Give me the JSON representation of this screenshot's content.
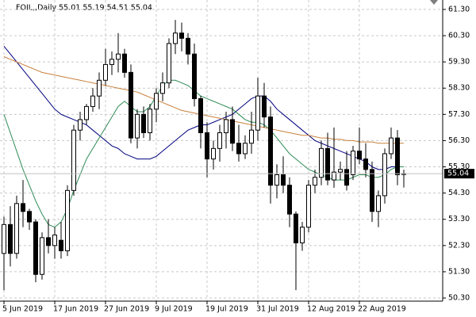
{
  "chart_data": {
    "type": "candlestick",
    "title": "FOIL,,Daily  55.01 55.19 54.51 55.04",
    "categories": [
      "5 Jun 2019",
      null,
      null,
      null,
      null,
      null,
      null,
      null,
      "17 Jun 2019",
      null,
      null,
      null,
      null,
      null,
      null,
      null,
      "27 Jun 2019",
      null,
      null,
      null,
      null,
      null,
      null,
      null,
      "9 Jul 2019",
      null,
      null,
      null,
      null,
      null,
      null,
      null,
      "19 Jul 2019",
      null,
      null,
      null,
      null,
      null,
      null,
      null,
      "31 Jul 2019",
      null,
      null,
      null,
      null,
      null,
      null,
      null,
      "12 Aug 2019",
      null,
      null,
      null,
      null,
      null,
      null,
      null,
      "22 Aug 2019",
      null,
      null,
      null,
      null,
      null,
      null,
      null
    ],
    "open": [
      52.0,
      53.1,
      52.0,
      53.9,
      53.6,
      53.2,
      51.2,
      52.6,
      52.3,
      52.5,
      52.1,
      54.4,
      56.7,
      57.1,
      57.6,
      58.0,
      58.6,
      59.2,
      59.4,
      59.6,
      58.9,
      56.4,
      57.3,
      56.6,
      57.5,
      58.1,
      58.5,
      60.0,
      60.4,
      60.2,
      59.6,
      57.9,
      56.6,
      55.6,
      56.0,
      56.6,
      57.1,
      56.2,
      55.8,
      56.2,
      56.7,
      58.0,
      57.2,
      54.6,
      55.0,
      54.6,
      53.5,
      52.4,
      53.0,
      54.6,
      54.9,
      56.0,
      54.8,
      55.1,
      55.2,
      55.0,
      55.9,
      55.6,
      55.2,
      53.6,
      54.2,
      55.8,
      56.4,
      55.01
    ],
    "high": [
      53.4,
      53.8,
      54.2,
      54.8,
      53.7,
      53.3,
      52.8,
      53.3,
      53.0,
      53.2,
      54.6,
      56.9,
      57.4,
      57.7,
      58.3,
      58.9,
      59.8,
      59.7,
      60.4,
      59.8,
      59.2,
      57.5,
      57.6,
      57.7,
      58.3,
      58.9,
      60.2,
      60.9,
      60.8,
      60.4,
      60.0,
      58.0,
      57.0,
      56.3,
      56.9,
      57.4,
      57.6,
      56.9,
      56.5,
      57.4,
      58.7,
      58.5,
      57.6,
      55.4,
      55.7,
      54.9,
      53.6,
      53.2,
      54.8,
      55.2,
      56.3,
      56.6,
      56.8,
      55.5,
      55.9,
      56.1,
      56.8,
      56.2,
      55.5,
      54.4,
      56.0,
      56.8,
      56.7,
      55.19
    ],
    "low": [
      50.6,
      51.5,
      51.8,
      53.0,
      52.9,
      50.9,
      51.0,
      52.0,
      51.8,
      51.8,
      51.9,
      54.2,
      56.3,
      56.9,
      57.4,
      57.5,
      58.4,
      58.8,
      58.9,
      58.7,
      56.2,
      56.0,
      56.4,
      56.3,
      57.0,
      57.8,
      58.3,
      59.6,
      59.7,
      59.2,
      57.6,
      56.0,
      54.9,
      55.2,
      55.5,
      56.0,
      55.9,
      55.5,
      55.6,
      55.8,
      56.3,
      56.8,
      53.9,
      54.1,
      54.3,
      53.0,
      50.6,
      52.1,
      52.8,
      54.3,
      54.6,
      54.6,
      54.5,
      54.8,
      54.4,
      54.8,
      55.4,
      54.9,
      53.2,
      53.0,
      53.9,
      55.6,
      54.6,
      54.51
    ],
    "close": [
      53.1,
      52.0,
      53.9,
      53.6,
      53.2,
      51.2,
      52.6,
      52.3,
      52.7,
      52.1,
      54.4,
      56.7,
      57.1,
      57.6,
      58.0,
      58.6,
      59.2,
      59.4,
      59.6,
      58.9,
      56.4,
      57.3,
      56.6,
      57.5,
      58.1,
      58.5,
      60.0,
      60.4,
      60.2,
      59.6,
      57.9,
      56.6,
      55.6,
      56.0,
      56.6,
      57.1,
      56.2,
      55.8,
      56.2,
      56.7,
      58.0,
      57.2,
      54.6,
      55.0,
      54.6,
      53.5,
      52.4,
      53.0,
      54.6,
      54.9,
      56.0,
      54.8,
      55.1,
      55.2,
      54.6,
      55.9,
      55.6,
      55.2,
      53.6,
      54.2,
      55.8,
      56.4,
      55.0,
      55.04
    ],
    "lines": [
      {
        "color": "#00007f",
        "values": [
          59.9,
          59.6,
          59.3,
          59.0,
          58.7,
          58.4,
          58.1,
          57.8,
          57.5,
          57.3,
          57.2,
          57.1,
          57.0,
          56.9,
          56.7,
          56.5,
          56.3,
          56.1,
          56.0,
          55.8,
          55.7,
          55.6,
          55.6,
          55.6,
          55.7,
          55.9,
          56.1,
          56.3,
          56.5,
          56.7,
          56.8,
          56.9,
          56.9,
          57.0,
          57.1,
          57.2,
          57.3,
          57.5,
          57.7,
          57.9,
          58.0,
          58.0,
          57.8,
          57.5,
          57.3,
          57.1,
          56.9,
          56.7,
          56.5,
          56.3,
          56.2,
          56.1,
          56.0,
          55.9,
          55.8,
          55.7,
          55.6,
          55.5,
          55.3,
          55.2,
          55.2,
          55.3,
          55.3,
          55.3
        ]
      },
      {
        "color": "#2e8b57",
        "values": [
          57.3,
          56.6,
          55.9,
          55.2,
          54.6,
          54.0,
          53.5,
          53.1,
          53.0,
          53.2,
          53.7,
          54.4,
          55.0,
          55.6,
          56.0,
          56.4,
          56.8,
          57.2,
          57.6,
          57.8,
          57.6,
          57.4,
          57.4,
          57.6,
          58.0,
          58.4,
          58.6,
          58.6,
          58.5,
          58.4,
          58.2,
          58.0,
          57.9,
          57.8,
          57.7,
          57.6,
          57.5,
          57.3,
          57.1,
          57.0,
          57.0,
          56.9,
          56.7,
          56.4,
          56.1,
          55.8,
          55.6,
          55.4,
          55.2,
          55.1,
          55.0,
          54.9,
          54.8,
          54.8,
          54.8,
          54.9,
          55.0,
          55.0,
          54.9,
          54.9,
          55.0,
          55.2,
          55.3,
          55.3
        ]
      },
      {
        "color": "#c8803c",
        "values": [
          59.5,
          59.4,
          59.3,
          59.2,
          59.1,
          59.0,
          58.9,
          58.85,
          58.8,
          58.75,
          58.7,
          58.65,
          58.6,
          58.55,
          58.5,
          58.45,
          58.4,
          58.35,
          58.3,
          58.25,
          58.2,
          58.15,
          58.05,
          57.95,
          57.85,
          57.75,
          57.65,
          57.55,
          57.45,
          57.4,
          57.35,
          57.3,
          57.25,
          57.2,
          57.15,
          57.1,
          57.05,
          57.0,
          56.95,
          56.9,
          56.85,
          56.8,
          56.75,
          56.7,
          56.65,
          56.6,
          56.55,
          56.5,
          56.5,
          56.45,
          56.4,
          56.4,
          56.35,
          56.35,
          56.3,
          56.3,
          56.25,
          56.25,
          56.25,
          56.2,
          56.2,
          56.2,
          56.2,
          56.2
        ]
      }
    ],
    "ylim": [
      50.18,
      61.66
    ],
    "yticks": [
      {
        "value": 50.3,
        "label": "50.30"
      },
      {
        "value": 51.3,
        "label": "51.30"
      },
      {
        "value": 52.3,
        "label": "52.30"
      },
      {
        "value": 53.3,
        "label": "53.30"
      },
      {
        "value": 54.3,
        "label": "54.30"
      },
      {
        "value": 55.3,
        "label": "55.30"
      },
      {
        "value": 56.3,
        "label": "56.30"
      },
      {
        "value": 57.3,
        "label": "57.30"
      },
      {
        "value": 58.3,
        "label": "58.30"
      },
      {
        "value": 59.3,
        "label": "59.30"
      },
      {
        "value": 60.3,
        "label": "60.30"
      },
      {
        "value": 61.3,
        "label": "61.30"
      }
    ],
    "grid": true,
    "up_color": "#ffffff",
    "down_color": "#000000"
  }
}
